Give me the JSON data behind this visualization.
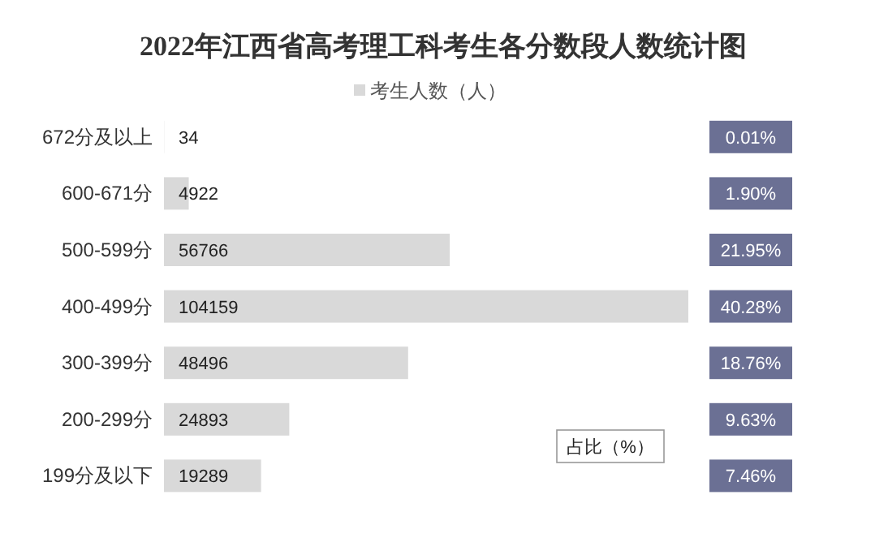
{
  "chart_data": [
    {
      "type": "bar",
      "orientation": "horizontal",
      "title": "2022年江西省高考理工科考生各分数段人数统计图",
      "categories": [
        "672分及以上",
        "600-671分",
        "500-599分",
        "400-499分",
        "300-399分",
        "200-299分",
        "199分及以下"
      ],
      "series": [
        {
          "name": "考生人数（人）",
          "color": "#d9d9d9",
          "values": [
            34,
            4922,
            56766,
            104159,
            48496,
            24893,
            19289
          ]
        }
      ],
      "data_labels": true,
      "legend": "top"
    },
    {
      "type": "other",
      "title": "占比（%）",
      "annotations": [
        "0.01%",
        "1.90%",
        "21.95%",
        "40.28%",
        "18.76%",
        "9.63%",
        "7.46%"
      ]
    }
  ]
}
